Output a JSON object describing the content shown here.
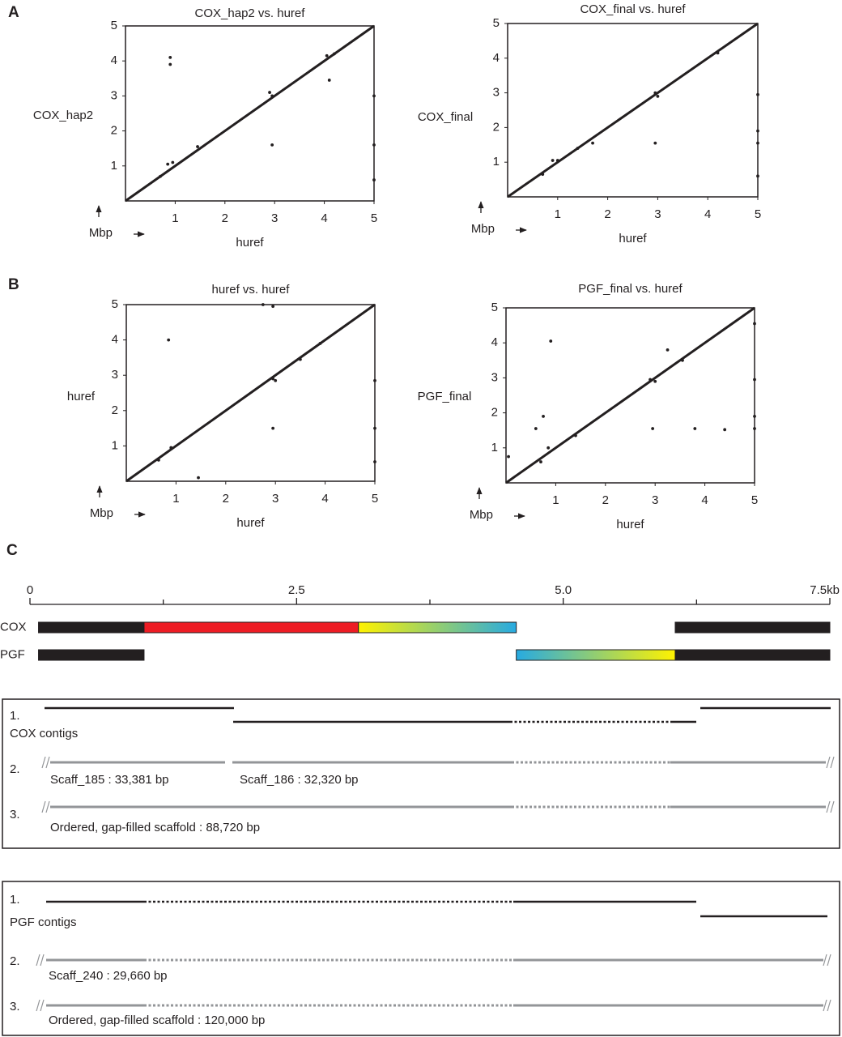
{
  "panel_labels": [
    "A",
    "B",
    "C"
  ],
  "chart_data": [
    {
      "type": "scatter",
      "title": "COX_hap2 vs. huref",
      "xlabel": "huref",
      "ylabel": "COX_hap2",
      "unit": "Mbp",
      "xlim": [
        0,
        5
      ],
      "ylim": [
        0,
        5
      ],
      "xticks": [
        1,
        2,
        3,
        4,
        5
      ],
      "yticks": [
        1,
        2,
        3,
        4,
        5
      ],
      "line": {
        "x": [
          0,
          5
        ],
        "y": [
          0,
          5
        ]
      },
      "x": [
        0.7,
        0.9,
        0.9,
        0.85,
        0.95,
        1.45,
        2.9,
        2.95,
        2.95,
        4.1,
        4.05,
        4.2,
        5,
        5,
        5
      ],
      "y": [
        0.7,
        4.1,
        3.9,
        1.05,
        1.1,
        1.55,
        3.1,
        3.0,
        1.6,
        3.45,
        4.15,
        4.2,
        3.0,
        1.6,
        0.6
      ]
    },
    {
      "type": "scatter",
      "title": "COX_final vs. huref",
      "xlabel": "huref",
      "ylabel": "COX_final",
      "unit": "Mbp",
      "xlim": [
        0,
        5
      ],
      "ylim": [
        0,
        5
      ],
      "xticks": [
        1,
        2,
        3,
        4,
        5
      ],
      "yticks": [
        1,
        2,
        3,
        4,
        5
      ],
      "line": {
        "x": [
          0,
          5
        ],
        "y": [
          0,
          5
        ]
      },
      "x": [
        0.7,
        0.9,
        1.0,
        1.4,
        1.7,
        2.95,
        3.0,
        2.95,
        4.2,
        5,
        5,
        5,
        5
      ],
      "y": [
        0.65,
        1.05,
        1.05,
        1.4,
        1.55,
        3.0,
        2.9,
        1.55,
        4.15,
        2.95,
        1.9,
        1.55,
        0.6
      ]
    },
    {
      "type": "scatter",
      "title": "huref vs. huref",
      "xlabel": "huref",
      "ylabel": "huref",
      "unit": "Mbp",
      "xlim": [
        0,
        5
      ],
      "ylim": [
        0,
        5
      ],
      "xticks": [
        1,
        2,
        3,
        4,
        5
      ],
      "yticks": [
        1,
        2,
        3,
        4,
        5
      ],
      "line": {
        "x": [
          0,
          5
        ],
        "y": [
          0,
          5
        ]
      },
      "x": [
        0.65,
        0.9,
        0.85,
        1.45,
        2.75,
        2.95,
        2.95,
        3.0,
        3.5,
        3.9,
        2.95,
        5,
        5,
        5
      ],
      "y": [
        0.6,
        0.95,
        4.0,
        0.1,
        5.0,
        4.95,
        2.9,
        2.85,
        3.45,
        3.9,
        1.5,
        2.85,
        1.5,
        0.55
      ]
    },
    {
      "type": "scatter",
      "title": "PGF_final vs. huref",
      "xlabel": "huref",
      "ylabel": "PGF_final",
      "unit": "Mbp",
      "xlim": [
        0,
        5
      ],
      "ylim": [
        0,
        5
      ],
      "xticks": [
        1,
        2,
        3,
        4,
        5
      ],
      "yticks": [
        1,
        2,
        3,
        4,
        5
      ],
      "line": {
        "x": [
          0,
          5
        ],
        "y": [
          0,
          5
        ]
      },
      "x": [
        0.05,
        0.6,
        0.7,
        0.75,
        0.85,
        0.9,
        1.4,
        2.9,
        3.0,
        3.25,
        3.55,
        2.95,
        3.8,
        4.4,
        5,
        5,
        5,
        5
      ],
      "y": [
        0.75,
        1.55,
        0.6,
        1.9,
        1.0,
        4.05,
        1.35,
        2.95,
        2.9,
        3.8,
        3.5,
        1.55,
        1.55,
        1.52,
        4.55,
        2.95,
        1.9,
        1.55
      ]
    }
  ],
  "scale": {
    "xlim": [
      0,
      7.5
    ],
    "ticks": [
      0,
      2.5,
      {
        "value": 5,
        "label": "5.0"
      },
      {
        "value": 7.5,
        "label": "7.5kb"
      }
    ],
    "minor_ticks": [
      1.25,
      3.75,
      6.25
    ]
  },
  "tracks": [
    {
      "label": "COX",
      "segments": [
        {
          "start": 0.08,
          "end": 1.07,
          "color": "#231f20"
        },
        {
          "start": 1.07,
          "end": 3.08,
          "color": "#ed1c24"
        },
        {
          "start": 3.08,
          "end": 4.56,
          "colors": [
            "#fff200",
            "#27aae1"
          ]
        },
        {
          "start": 6.05,
          "end": 7.5,
          "color": "#231f20"
        }
      ]
    },
    {
      "label": "PGF",
      "segments": [
        {
          "start": 0.08,
          "end": 1.07,
          "color": "#231f20"
        },
        {
          "start": 4.56,
          "end": 6.05,
          "colors": [
            "#27aae1",
            "#fff200"
          ]
        },
        {
          "start": 6.05,
          "end": 7.5,
          "color": "#231f20"
        }
      ]
    }
  ],
  "cox_box": {
    "rows": [
      "1.",
      "2.",
      "3."
    ],
    "title": "COX contigs",
    "scaffolds": [
      "Scaff_185 : 33,381 bp",
      "Scaff_186 : 32,320 bp"
    ],
    "final": "Ordered, gap-filled scaffold : 88,720 bp"
  },
  "pgf_box": {
    "rows": [
      "1.",
      "2.",
      "3."
    ],
    "title": "PGF contigs",
    "scaffolds": [
      "Scaff_240 : 29,660 bp"
    ],
    "final": "Ordered, gap-filled scaffold : 120,000 bp"
  }
}
